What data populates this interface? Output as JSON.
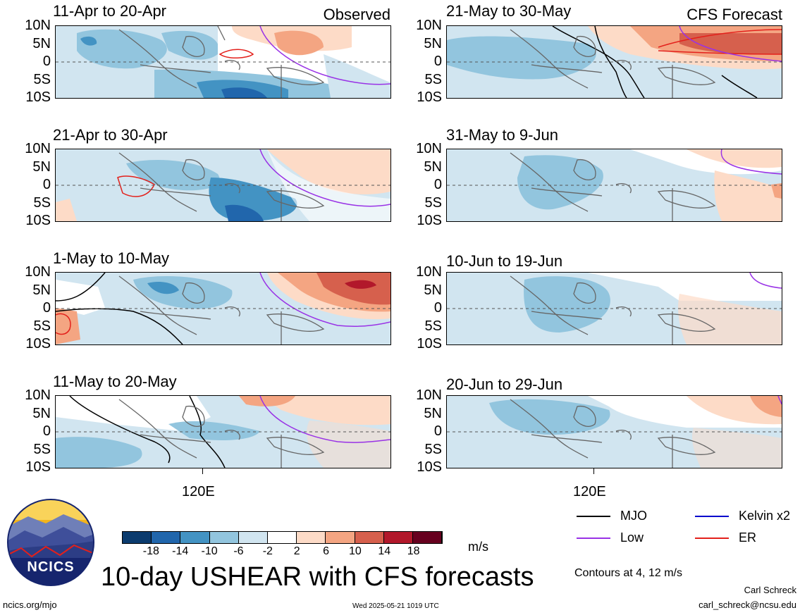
{
  "headings": {
    "observed": "Observed",
    "forecast": "CFS Forecast"
  },
  "lat_labels": [
    "10N",
    "5N",
    "0",
    "5S",
    "10S"
  ],
  "lon_label": "120E",
  "panels": {
    "observed": [
      {
        "title": "11-Apr to 20-Apr"
      },
      {
        "title": "21-Apr to 30-Apr"
      },
      {
        "title": "1-May to 10-May"
      },
      {
        "title": "11-May to 20-May"
      }
    ],
    "forecast": [
      {
        "title": "21-May to 30-May"
      },
      {
        "title": "31-May to 9-Jun"
      },
      {
        "title": "10-Jun to 19-Jun"
      },
      {
        "title": "20-Jun to 29-Jun"
      }
    ]
  },
  "colorbar": {
    "labels": [
      "-18",
      "-14",
      "-10",
      "-6",
      "-2",
      "2",
      "6",
      "10",
      "14",
      "18"
    ],
    "colors": [
      "#0b3b6e",
      "#2166ac",
      "#4393c3",
      "#92c5de",
      "#d1e5f0",
      "#ffffff",
      "#fddbc7",
      "#f4a582",
      "#d6604d",
      "#b2182b",
      "#67001f"
    ],
    "unit": "m/s"
  },
  "legend": {
    "items": [
      {
        "label": "MJO",
        "color": "#000000"
      },
      {
        "label": "Kelvin x2",
        "color": "#0000cc"
      },
      {
        "label": "Low",
        "color": "#9932e6"
      },
      {
        "label": "ER",
        "color": "#e3201b"
      }
    ],
    "contours_note": "Contours at 4, 12 m/s"
  },
  "main_title": "10-day USHEAR with CFS forecasts",
  "footer": {
    "url": "ncics.org/mjo",
    "timestamp": "Wed 2025-05-21 1019 UTC",
    "author": "Carl Schreck",
    "email": "carl_schreck@ncsu.edu"
  },
  "logo": {
    "text": "NCICS"
  }
}
